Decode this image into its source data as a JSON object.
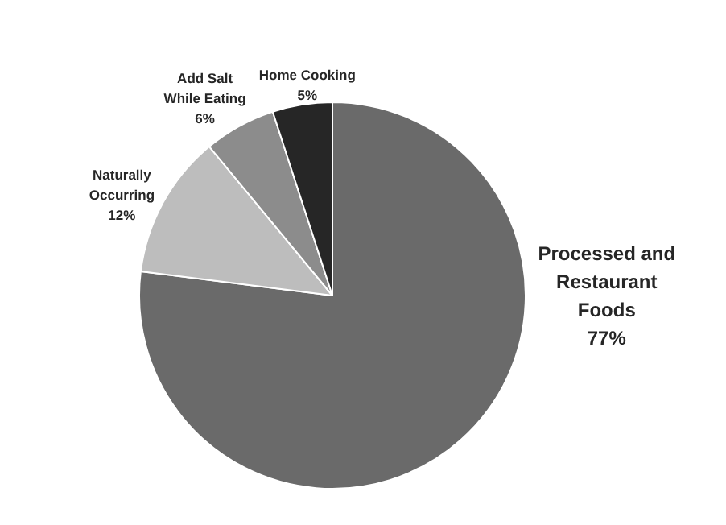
{
  "chart_data": {
    "type": "pie",
    "categories": [
      "Processed and\nRestaurant\nFoods",
      "Naturally\nOccurring",
      "Add Salt\nWhile Eating",
      "Home Cooking"
    ],
    "values": [
      77,
      12,
      6,
      5
    ],
    "value_labels": [
      "77%",
      "12%",
      "6%",
      "5%"
    ],
    "colors": [
      "#6a6a6a",
      "#bdbdbd",
      "#8c8c8c",
      "#262626"
    ]
  }
}
